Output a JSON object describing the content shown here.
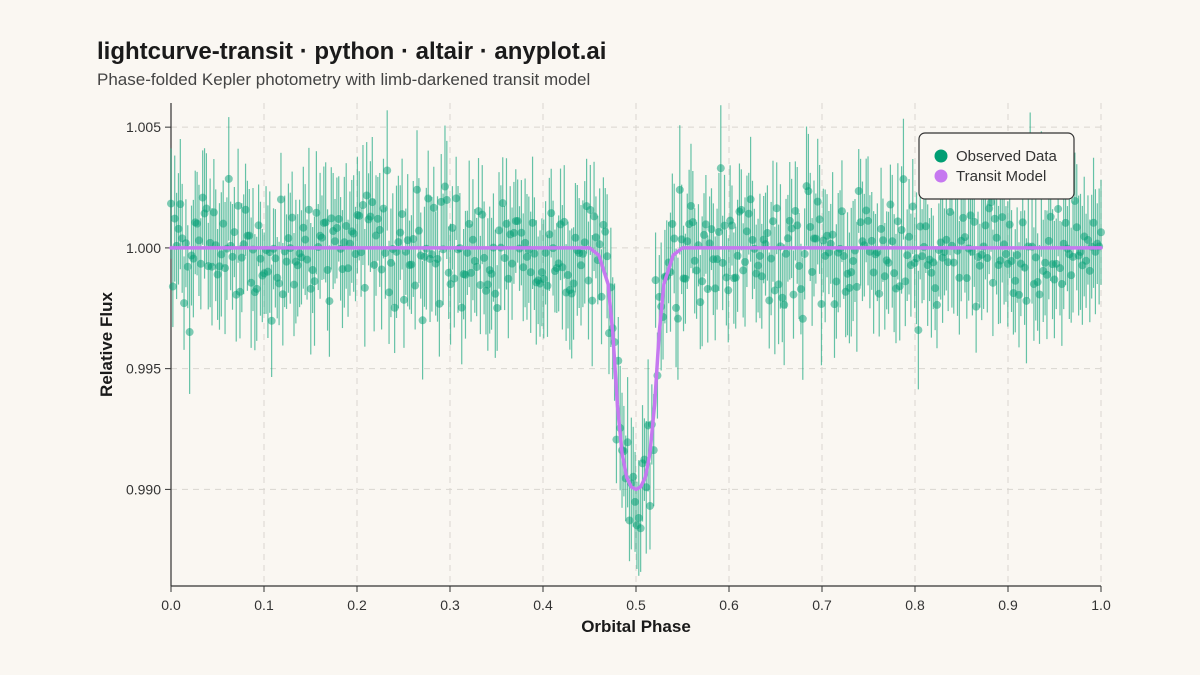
{
  "title": "lightcurve-transit · python · altair · anyplot.ai",
  "subtitle": "Phase-folded Kepler photometry with limb-darkened transit model",
  "colors": {
    "background": "#faf7f2",
    "observed": "#009e73",
    "model": "#c678f0",
    "grid": "#d9d6d0"
  },
  "chart_data": {
    "type": "scatter",
    "title": "lightcurve-transit · python · altair · anyplot.ai",
    "subtitle": "Phase-folded Kepler photometry with limb-darkened transit model",
    "xlabel": "Orbital Phase",
    "ylabel": "Relative Flux",
    "xlim": [
      0.0,
      1.0
    ],
    "ylim": [
      0.986,
      1.006
    ],
    "x_ticks": [
      0.0,
      0.1,
      0.2,
      0.3,
      0.4,
      0.5,
      0.6,
      0.7,
      0.8,
      0.9,
      1.0
    ],
    "x_tick_labels": [
      "0.0",
      "0.1",
      "0.2",
      "0.3",
      "0.4",
      "0.5",
      "0.6",
      "0.7",
      "0.8",
      "0.9",
      "1.0"
    ],
    "y_ticks": [
      0.99,
      0.995,
      1.0,
      1.005
    ],
    "y_tick_labels": [
      "0.990",
      "0.995",
      "1.000",
      "1.005"
    ],
    "grid": true,
    "legend_position": "top-right",
    "series": [
      {
        "name": "Observed Data",
        "kind": "points_with_error_bars",
        "color": "#009e73",
        "n_points": 500,
        "baseline_flux": 1.0,
        "scatter_sigma": 0.0013,
        "typical_error_bar": 0.0022,
        "x": [
          0.0,
          0.05,
          0.1,
          0.15,
          0.2,
          0.25,
          0.3,
          0.35,
          0.4,
          0.45,
          0.47,
          0.48,
          0.49,
          0.5,
          0.51,
          0.52,
          0.53,
          0.55,
          0.6,
          0.65,
          0.7,
          0.75,
          0.8,
          0.85,
          0.9,
          0.95,
          1.0
        ],
        "y": [
          1.0,
          1.0002,
          0.9998,
          1.0001,
          1.0,
          0.9999,
          1.0002,
          1.0,
          0.9999,
          1.0,
          0.9985,
          0.9935,
          0.991,
          0.99,
          0.9912,
          0.9935,
          0.999,
          1.0,
          1.0001,
          0.9999,
          1.0,
          1.0002,
          1.0,
          0.9999,
          1.0001,
          1.0,
          1.0
        ]
      },
      {
        "name": "Transit Model",
        "kind": "line",
        "color": "#c678f0",
        "x": [
          0.0,
          0.45,
          0.46,
          0.47,
          0.475,
          0.48,
          0.485,
          0.49,
          0.495,
          0.5,
          0.505,
          0.51,
          0.515,
          0.52,
          0.525,
          0.53,
          0.54,
          0.55,
          1.0
        ],
        "y": [
          1.0,
          1.0,
          0.9997,
          0.9985,
          0.9965,
          0.9935,
          0.9915,
          0.9905,
          0.9901,
          0.99,
          0.9901,
          0.9905,
          0.9915,
          0.9935,
          0.9965,
          0.9985,
          0.9997,
          1.0,
          1.0
        ]
      }
    ]
  }
}
